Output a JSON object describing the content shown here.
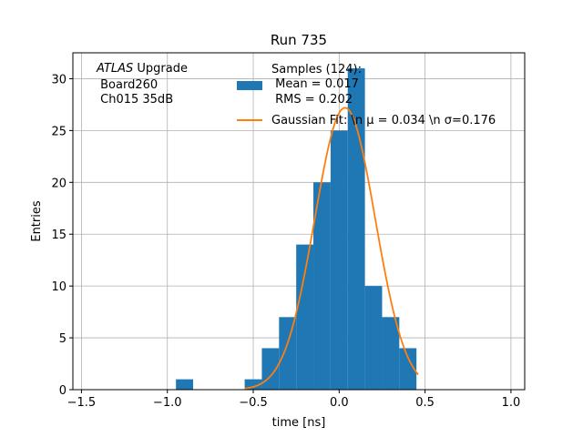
{
  "chart_data": {
    "type": "bar",
    "title": "Run 735",
    "xlabel": "time [ns]",
    "ylabel": "Entries",
    "xlim": [
      -1.55,
      1.08
    ],
    "ylim": [
      0,
      32.5
    ],
    "grid": true,
    "x_ticks": [
      -1.5,
      -1.0,
      -0.5,
      0.0,
      0.5,
      1.0
    ],
    "x_tick_labels": [
      "−1.5",
      "−1.0",
      "−0.5",
      "0.0",
      "0.5",
      "1.0"
    ],
    "y_ticks": [
      0,
      5,
      10,
      15,
      20,
      25,
      30
    ],
    "y_tick_labels": [
      "0",
      "5",
      "10",
      "15",
      "20",
      "25",
      "30"
    ],
    "histogram": {
      "color": "#1f77b4",
      "bins": [
        {
          "x0": -0.95,
          "x1": -0.85,
          "count": 1
        },
        {
          "x0": -0.55,
          "x1": -0.45,
          "count": 1
        },
        {
          "x0": -0.45,
          "x1": -0.35,
          "count": 4
        },
        {
          "x0": -0.35,
          "x1": -0.25,
          "count": 7
        },
        {
          "x0": -0.25,
          "x1": -0.15,
          "count": 14
        },
        {
          "x0": -0.15,
          "x1": -0.05,
          "count": 20
        },
        {
          "x0": -0.05,
          "x1": 0.05,
          "count": 25
        },
        {
          "x0": 0.05,
          "x1": 0.15,
          "count": 31
        },
        {
          "x0": 0.15,
          "x1": 0.25,
          "count": 10
        },
        {
          "x0": 0.25,
          "x1": 0.35,
          "count": 7
        },
        {
          "x0": 0.35,
          "x1": 0.45,
          "count": 4
        }
      ]
    },
    "gaussian_fit": {
      "color": "#ff7f0e",
      "amplitude": 27.2,
      "mu": 0.034,
      "sigma": 0.176,
      "x_range": [
        -0.55,
        0.46
      ]
    },
    "annotation": {
      "line1_italic": "ATLAS",
      "line1_rest": " Upgrade",
      "line2": " Board260",
      "line3": " Ch015 35dB"
    },
    "legend": {
      "position": "top-right",
      "samples_line1": "Samples (124):",
      "samples_line2": " Mean = 0.017",
      "samples_line3": " RMS = 0.202",
      "fit_label": "Gaussian Fit: \\n μ = 0.034 \\n σ=0.176"
    }
  }
}
